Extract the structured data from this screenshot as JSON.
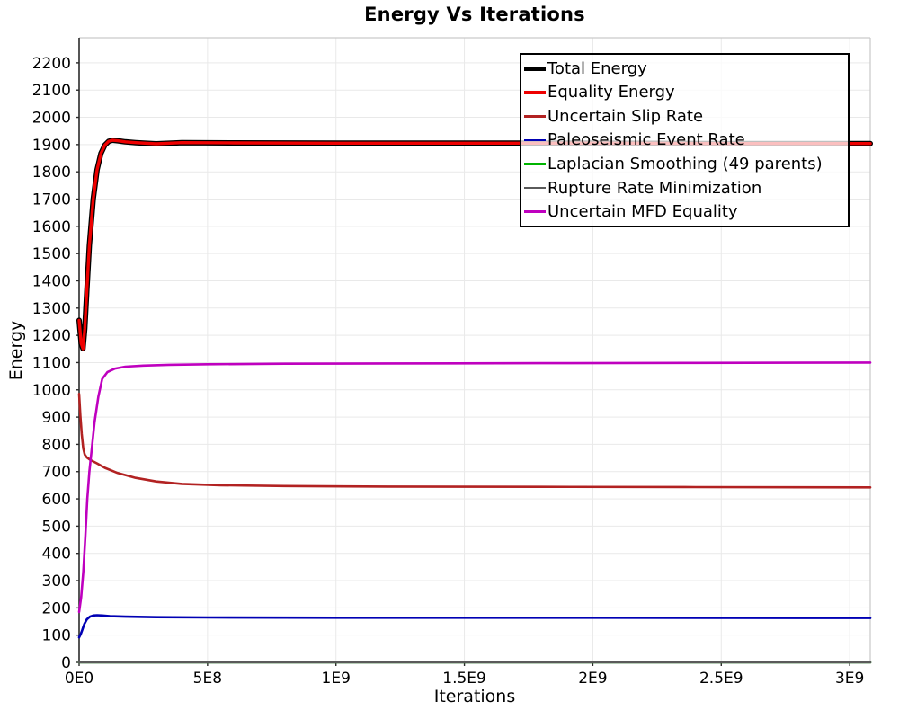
{
  "chart_data": {
    "type": "line",
    "title": "Energy Vs Iterations",
    "xlabel": "Iterations",
    "ylabel": "Energy",
    "xlim": [
      0,
      3080000000
    ],
    "ylim": [
      0,
      2292
    ],
    "grid": true,
    "legend_position": "top-right",
    "axis_color": "#2b2b2b",
    "border_color": "#c9c9c9",
    "grid_color": "#e9e9e9",
    "x_ticks": [
      {
        "value": 0,
        "label": "0E0"
      },
      {
        "value": 500000000,
        "label": "5E8"
      },
      {
        "value": 1000000000,
        "label": "1E9"
      },
      {
        "value": 1500000000,
        "label": "1.5E9"
      },
      {
        "value": 2000000000,
        "label": "2E9"
      },
      {
        "value": 2500000000,
        "label": "2.5E9"
      },
      {
        "value": 3000000000,
        "label": "3E9"
      }
    ],
    "y_ticks": {
      "min": 0,
      "max": 2200,
      "step": 100
    },
    "series": [
      {
        "name": "Total Energy",
        "color": "#000000",
        "line_width": 6,
        "swatch_height": 5,
        "x": [
          0,
          8000000,
          15000000,
          22000000,
          30000000,
          40000000,
          55000000,
          70000000,
          85000000,
          100000000,
          115000000,
          130000000,
          150000000,
          180000000,
          220000000,
          300000000,
          400000000,
          600000000,
          1000000000,
          1500000000,
          2000000000,
          2500000000,
          3080000000
        ],
        "y": [
          1255,
          1170,
          1151,
          1225,
          1365,
          1530,
          1700,
          1808,
          1868,
          1898,
          1912,
          1916,
          1914,
          1910,
          1907,
          1903,
          1907,
          1906,
          1905,
          1905,
          1905,
          1904,
          1904
        ]
      },
      {
        "name": "Equality Energy",
        "color": "#ee0000",
        "line_width": 3.4,
        "swatch_height": 4,
        "x": [
          0,
          8000000,
          15000000,
          22000000,
          30000000,
          40000000,
          55000000,
          70000000,
          85000000,
          100000000,
          115000000,
          130000000,
          150000000,
          180000000,
          220000000,
          300000000,
          400000000,
          600000000,
          1000000000,
          1500000000,
          2000000000,
          2500000000,
          3080000000
        ],
        "y": [
          1255,
          1170,
          1151,
          1225,
          1365,
          1530,
          1700,
          1808,
          1868,
          1898,
          1912,
          1916,
          1914,
          1910,
          1907,
          1903,
          1907,
          1906,
          1905,
          1905,
          1905,
          1904,
          1904
        ]
      },
      {
        "name": "Uncertain Slip Rate",
        "color": "#b22222",
        "line_width": 2.6,
        "swatch_height": 2.5,
        "x": [
          0,
          5000000,
          10000000,
          16000000,
          22000000,
          30000000,
          45000000,
          70000000,
          100000000,
          150000000,
          220000000,
          300000000,
          400000000,
          550000000,
          800000000,
          1200000000,
          1800000000,
          2400000000,
          3080000000
        ],
        "y": [
          985,
          905,
          838,
          785,
          762,
          752,
          742,
          730,
          714,
          695,
          677,
          664,
          655,
          650,
          647,
          645,
          644,
          643,
          642
        ]
      },
      {
        "name": "Paleoseismic Event Rate",
        "color": "#0000b4",
        "line_width": 2.6,
        "swatch_height": 2.5,
        "x": [
          0,
          6000000,
          12000000,
          20000000,
          30000000,
          42000000,
          55000000,
          70000000,
          90000000,
          120000000,
          180000000,
          300000000,
          500000000,
          1000000000,
          2000000000,
          3080000000
        ],
        "y": [
          92,
          103,
          118,
          140,
          158,
          168,
          172,
          173,
          172,
          170,
          168,
          166,
          165,
          164,
          164,
          163
        ]
      },
      {
        "name": "Laplacian Smoothing (49 parents)",
        "color": "#00b400",
        "line_width": 2.6,
        "swatch_height": 2.5,
        "x": [
          0,
          3080000000
        ],
        "y": [
          0,
          0
        ]
      },
      {
        "name": "Rupture Rate Minimization",
        "color": "#5a5a5a",
        "line_width": 2.6,
        "swatch_height": 2.5,
        "x": [
          0,
          3080000000
        ],
        "y": [
          0,
          0
        ]
      },
      {
        "name": "Uncertain MFD Equality",
        "color": "#bf00bf",
        "line_width": 2.6,
        "swatch_height": 2.5,
        "x": [
          0,
          8000000,
          16000000,
          24000000,
          32000000,
          40000000,
          50000000,
          60000000,
          75000000,
          90000000,
          110000000,
          140000000,
          180000000,
          250000000,
          350000000,
          500000000,
          800000000,
          1200000000,
          1800000000,
          2400000000,
          3080000000
        ],
        "y": [
          185,
          240,
          330,
          460,
          600,
          700,
          790,
          880,
          975,
          1040,
          1065,
          1078,
          1085,
          1089,
          1092,
          1094,
          1096,
          1097,
          1098,
          1099,
          1100
        ]
      }
    ]
  }
}
